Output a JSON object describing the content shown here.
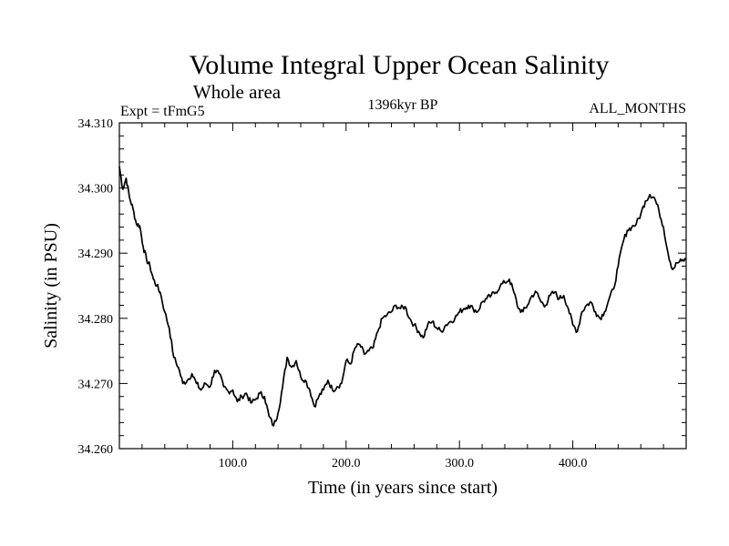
{
  "chart_data": {
    "type": "line",
    "title": "Volume Integral Upper Ocean Salinity",
    "subtitle": "Whole area",
    "meta_left": "Expt = tFmG5",
    "meta_center": "1396kyr BP",
    "meta_right": "ALL_MONTHS",
    "xlabel": "Time (in years since start)",
    "ylabel": "Salinity (in PSU)",
    "xlim": [
      0,
      500
    ],
    "ylim": [
      34.26,
      34.31
    ],
    "x_ticks": [
      100,
      200,
      300,
      400
    ],
    "x_tick_labels": [
      "100.0",
      "200.0",
      "300.0",
      "400.0"
    ],
    "y_ticks": [
      34.26,
      34.27,
      34.28,
      34.29,
      34.3,
      34.31
    ],
    "y_tick_labels": [
      "34.260",
      "34.270",
      "34.280",
      "34.290",
      "34.300",
      "34.310"
    ],
    "grid": false,
    "series": [
      {
        "name": "salinity",
        "x": [
          0,
          3,
          6,
          9,
          12,
          15,
          18,
          21,
          24,
          27,
          30,
          33,
          36,
          40,
          44,
          48,
          52,
          56,
          60,
          64,
          68,
          72,
          76,
          80,
          84,
          88,
          92,
          96,
          100,
          104,
          108,
          112,
          116,
          120,
          124,
          128,
          132,
          136,
          140,
          144,
          148,
          152,
          156,
          160,
          164,
          168,
          172,
          176,
          180,
          184,
          188,
          192,
          196,
          200,
          204,
          208,
          212,
          216,
          220,
          224,
          228,
          232,
          236,
          240,
          244,
          248,
          252,
          256,
          260,
          264,
          268,
          272,
          276,
          280,
          284,
          288,
          292,
          296,
          300,
          304,
          308,
          312,
          316,
          320,
          324,
          328,
          332,
          336,
          340,
          344,
          348,
          352,
          356,
          360,
          364,
          368,
          372,
          376,
          380,
          384,
          388,
          392,
          396,
          400,
          404,
          408,
          412,
          416,
          420,
          424,
          428,
          432,
          436,
          440,
          444,
          448,
          452,
          456,
          460,
          464,
          468,
          472,
          476,
          480,
          484,
          488,
          492,
          496,
          500
        ],
        "values": [
          34.3033,
          34.2998,
          34.3015,
          34.2985,
          34.2968,
          34.2945,
          34.2942,
          34.291,
          34.289,
          34.288,
          34.286,
          34.285,
          34.284,
          34.281,
          34.2785,
          34.274,
          34.2725,
          34.27,
          34.2705,
          34.2715,
          34.27,
          34.269,
          34.27,
          34.2695,
          34.272,
          34.2715,
          34.2695,
          34.2688,
          34.269,
          34.2672,
          34.268,
          34.2685,
          34.267,
          34.2675,
          34.2685,
          34.268,
          34.265,
          34.2635,
          34.2655,
          34.2695,
          34.274,
          34.2725,
          34.2735,
          34.271,
          34.2705,
          34.269,
          34.2665,
          34.268,
          34.269,
          34.2705,
          34.269,
          34.2695,
          34.27,
          34.2735,
          34.273,
          34.2755,
          34.276,
          34.2745,
          34.275,
          34.2755,
          34.278,
          34.28,
          34.2805,
          34.281,
          34.282,
          34.2815,
          34.2818,
          34.28,
          34.279,
          34.278,
          34.277,
          34.279,
          34.2795,
          34.2785,
          34.278,
          34.279,
          34.2795,
          34.28,
          34.281,
          34.2815,
          34.282,
          34.2815,
          34.281,
          34.2825,
          34.283,
          34.2835,
          34.284,
          34.285,
          34.2855,
          34.286,
          34.284,
          34.2815,
          34.281,
          34.282,
          34.2835,
          34.284,
          34.2825,
          34.282,
          34.2835,
          34.284,
          34.283,
          34.2835,
          34.2815,
          34.279,
          34.278,
          34.281,
          34.282,
          34.2825,
          34.281,
          34.28,
          34.281,
          34.283,
          34.2845,
          34.288,
          34.2915,
          34.2935,
          34.294,
          34.2945,
          34.296,
          34.298,
          34.299,
          34.2985,
          34.2965,
          34.294,
          34.29,
          34.2875,
          34.2885,
          34.2888,
          34.289
        ]
      }
    ]
  }
}
